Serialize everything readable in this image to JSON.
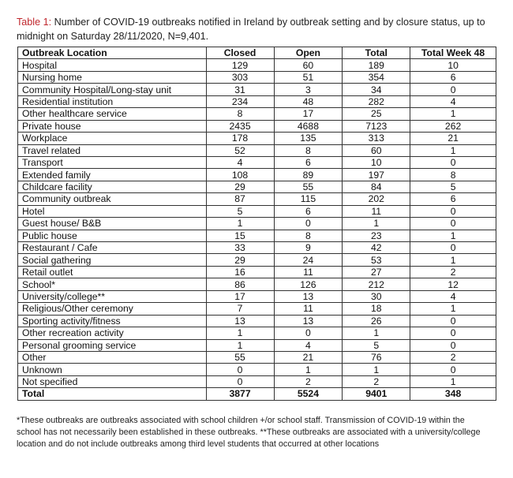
{
  "caption": {
    "label": "Table 1:",
    "text": " Number of COVID-19 outbreaks notified in Ireland by outbreak setting and by closure status, up to midnight on Saturday 28/11/2020, N=9,401."
  },
  "colors": {
    "caption_label": "#c0272d"
  },
  "table": {
    "headers": [
      "Outbreak Location",
      "Closed",
      "Open",
      "Total",
      "Total Week 48"
    ],
    "rows": [
      [
        "Hospital",
        "129",
        "60",
        "189",
        "10"
      ],
      [
        "Nursing home",
        "303",
        "51",
        "354",
        "6"
      ],
      [
        "Community Hospital/Long-stay unit",
        "31",
        "3",
        "34",
        "0"
      ],
      [
        "Residential institution",
        "234",
        "48",
        "282",
        "4"
      ],
      [
        "Other healthcare service",
        "8",
        "17",
        "25",
        "1"
      ],
      [
        "Private house",
        "2435",
        "4688",
        "7123",
        "262"
      ],
      [
        "Workplace",
        "178",
        "135",
        "313",
        "21"
      ],
      [
        "Travel related",
        "52",
        "8",
        "60",
        "1"
      ],
      [
        "Transport",
        "4",
        "6",
        "10",
        "0"
      ],
      [
        "Extended family",
        "108",
        "89",
        "197",
        "8"
      ],
      [
        "Childcare facility",
        "29",
        "55",
        "84",
        "5"
      ],
      [
        "Community outbreak",
        "87",
        "115",
        "202",
        "6"
      ],
      [
        "Hotel",
        "5",
        "6",
        "11",
        "0"
      ],
      [
        "Guest house/ B&B",
        "1",
        "0",
        "1",
        "0"
      ],
      [
        "Public house",
        "15",
        "8",
        "23",
        "1"
      ],
      [
        "Restaurant / Cafe",
        "33",
        "9",
        "42",
        "0"
      ],
      [
        "Social gathering",
        "29",
        "24",
        "53",
        "1"
      ],
      [
        "Retail outlet",
        "16",
        "11",
        "27",
        "2"
      ],
      [
        "School*",
        "86",
        "126",
        "212",
        "12"
      ],
      [
        "University/college**",
        "17",
        "13",
        "30",
        "4"
      ],
      [
        "Religious/Other ceremony",
        "7",
        "11",
        "18",
        "1"
      ],
      [
        "Sporting activity/fitness",
        "13",
        "13",
        "26",
        "0"
      ],
      [
        "Other recreation activity",
        "1",
        "0",
        "1",
        "0"
      ],
      [
        "Personal grooming service",
        "1",
        "4",
        "5",
        "0"
      ],
      [
        "Other",
        "55",
        "21",
        "76",
        "2"
      ],
      [
        "Unknown",
        "0",
        "1",
        "1",
        "0"
      ],
      [
        "Not specified",
        "0",
        "2",
        "2",
        "1"
      ]
    ],
    "total": [
      "Total",
      "3877",
      "5524",
      "9401",
      "348"
    ]
  },
  "footnote": "*These outbreaks are outbreaks associated with school children +/or school staff. Transmission of COVID-19 within the school has not necessarily been established in these outbreaks.  **These outbreaks are associated with a university/college location and do not include outbreaks among third level students that occurred at other locations"
}
